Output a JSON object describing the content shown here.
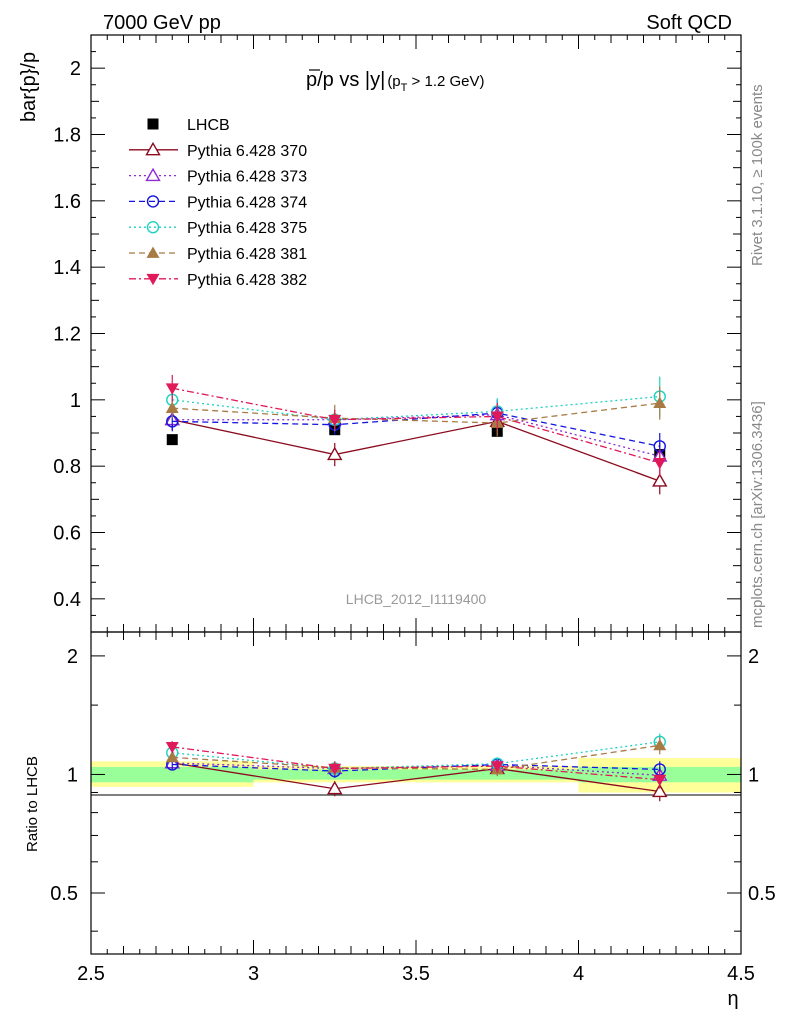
{
  "header": {
    "left": "7000 GeV pp",
    "right": "Soft QCD"
  },
  "side_labels": {
    "rivet": "Rivet 3.1.10, ≥ 100k events",
    "mcplots": "mcplots.cern.ch [arXiv:1306.3436]"
  },
  "chart_data": [
    {
      "type": "scatter",
      "panel": "main",
      "title_main": "p/p vs |y|",
      "title_p": "p",
      "title_rest": "/p vs |y|",
      "title_cut_prefix": "(p",
      "title_cut_sub": "T",
      "title_cut_suffix": " > 1.2 GeV)",
      "ylabel": "bar{p}/p",
      "watermark": "LHCB_2012_I1119400",
      "xlim": [
        2.5,
        4.5
      ],
      "ylim": [
        0.3,
        2.1
      ],
      "yticks": [
        "0.4",
        "0.6",
        "0.8",
        "1",
        "1.2",
        "1.4",
        "1.6",
        "1.8",
        "2"
      ],
      "grid": false,
      "legend_position": "top-left",
      "series": [
        {
          "name": "LHCB",
          "color": "#000000",
          "marker": "filled-square",
          "line": "none",
          "x": [
            2.75,
            3.25,
            3.75,
            4.25
          ],
          "y": [
            0.88,
            0.91,
            0.905,
            0.835
          ],
          "err": [
            0.008,
            0.008,
            0.01,
            0.015
          ]
        },
        {
          "name": "Pythia 6.428 370",
          "color": "#8b0a1e",
          "marker": "open-triangle-up",
          "line": "solid",
          "x": [
            2.75,
            3.25,
            3.75,
            4.25
          ],
          "y": [
            0.94,
            0.835,
            0.935,
            0.755
          ],
          "err": [
            0.03,
            0.035,
            0.04,
            0.04
          ]
        },
        {
          "name": "Pythia 6.428 373",
          "color": "#8e2bd4",
          "marker": "open-triangle-up",
          "line": "dotted",
          "x": [
            2.75,
            3.25,
            3.75,
            4.25
          ],
          "y": [
            0.94,
            0.94,
            0.955,
            0.83
          ],
          "err": [
            0.03,
            0.03,
            0.04,
            0.04
          ]
        },
        {
          "name": "Pythia 6.428 374",
          "color": "#1414e0",
          "marker": "open-circle",
          "line": "dashed",
          "x": [
            2.75,
            3.25,
            3.75,
            4.25
          ],
          "y": [
            0.935,
            0.925,
            0.96,
            0.86
          ],
          "err": [
            0.03,
            0.03,
            0.04,
            0.04
          ]
        },
        {
          "name": "Pythia 6.428 375",
          "color": "#1fd1c0",
          "marker": "open-circle",
          "line": "dotted",
          "x": [
            2.75,
            3.25,
            3.75,
            4.25
          ],
          "y": [
            1.0,
            0.94,
            0.965,
            1.01
          ],
          "err": [
            0.03,
            0.03,
            0.04,
            0.06
          ]
        },
        {
          "name": "Pythia 6.428 381",
          "color": "#a87b45",
          "marker": "filled-triangle-up",
          "line": "dashed",
          "x": [
            2.75,
            3.25,
            3.75,
            4.25
          ],
          "y": [
            0.975,
            0.945,
            0.93,
            0.99
          ],
          "err": [
            0.03,
            0.04,
            0.04,
            0.05
          ]
        },
        {
          "name": "Pythia 6.428 382",
          "color": "#e0195a",
          "marker": "filled-triangle-down",
          "line": "dashdot",
          "x": [
            2.75,
            3.25,
            3.75,
            4.25
          ],
          "y": [
            1.035,
            0.94,
            0.95,
            0.81
          ],
          "err": [
            0.04,
            0.03,
            0.04,
            0.04
          ]
        }
      ]
    },
    {
      "type": "scatter",
      "panel": "ratio",
      "ylabel": "Ratio to LHCB",
      "xlabel": "η",
      "xlim": [
        2.5,
        4.5
      ],
      "ylim": [
        0.35,
        2.3
      ],
      "yscale": "log",
      "yticks": [
        "0.5",
        "1",
        "2"
      ],
      "xticks": [
        "2.5",
        "3",
        "3.5",
        "4",
        "4.5"
      ],
      "bands": [
        {
          "x0": 2.5,
          "x1": 3.0,
          "yellow": [
            0.93,
            1.08
          ],
          "green": [
            0.955,
            1.045
          ]
        },
        {
          "x0": 3.0,
          "x1": 3.5,
          "yellow": [
            0.955,
            1.05
          ],
          "green": [
            0.97,
            1.03
          ]
        },
        {
          "x0": 3.5,
          "x1": 4.0,
          "yellow": [
            0.955,
            1.05
          ],
          "green": [
            0.97,
            1.03
          ]
        },
        {
          "x0": 4.0,
          "x1": 4.5,
          "yellow": [
            0.9,
            1.1
          ],
          "green": [
            0.955,
            1.045
          ]
        }
      ],
      "series": [
        {
          "name": "Pythia 6.428 370",
          "x": [
            2.75,
            3.25,
            3.75,
            4.25
          ],
          "y": [
            1.07,
            0.92,
            1.035,
            0.905
          ],
          "err": [
            0.03,
            0.04,
            0.04,
            0.05
          ]
        },
        {
          "name": "Pythia 6.428 373",
          "x": [
            2.75,
            3.25,
            3.75,
            4.25
          ],
          "y": [
            1.07,
            1.035,
            1.055,
            0.995
          ],
          "err": [
            0.03,
            0.04,
            0.04,
            0.05
          ]
        },
        {
          "name": "Pythia 6.428 374",
          "x": [
            2.75,
            3.25,
            3.75,
            4.25
          ],
          "y": [
            1.06,
            1.02,
            1.06,
            1.03
          ],
          "err": [
            0.03,
            0.04,
            0.04,
            0.05
          ]
        },
        {
          "name": "Pythia 6.428 375",
          "x": [
            2.75,
            3.25,
            3.75,
            4.25
          ],
          "y": [
            1.135,
            1.035,
            1.065,
            1.21
          ],
          "err": [
            0.03,
            0.04,
            0.04,
            0.06
          ]
        },
        {
          "name": "Pythia 6.428 381",
          "x": [
            2.75,
            3.25,
            3.75,
            4.25
          ],
          "y": [
            1.105,
            1.04,
            1.03,
            1.185
          ],
          "err": [
            0.03,
            0.04,
            0.04,
            0.06
          ]
        },
        {
          "name": "Pythia 6.428 382",
          "x": [
            2.75,
            3.25,
            3.75,
            4.25
          ],
          "y": [
            1.175,
            1.035,
            1.05,
            0.97
          ],
          "err": [
            0.04,
            0.04,
            0.04,
            0.05
          ]
        }
      ]
    }
  ]
}
